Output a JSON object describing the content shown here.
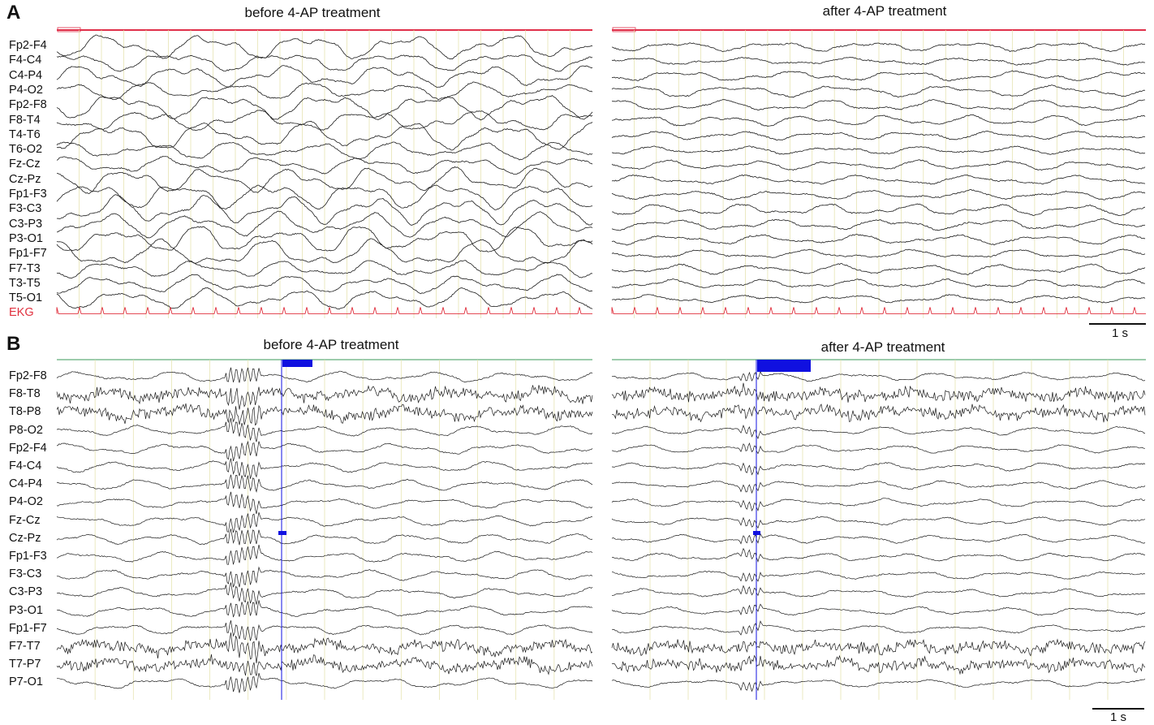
{
  "panels": {
    "A": {
      "letter": "A",
      "left_title": "before 4-AP treatment",
      "right_title": "after 4-AP treatment",
      "channels": [
        "Fp2-F4",
        "F4-C4",
        "C4-P4",
        "P4-O2",
        "Fp2-F8",
        "F8-T4",
        "T4-T6",
        "T6-O2",
        "Fz-Cz",
        "Cz-Pz",
        "Fp1-F3",
        "F3-C3",
        "C3-P3",
        "P3-O1",
        "Fp1-F7",
        "F7-T3",
        "T3-T5",
        "T5-O1",
        "EKG"
      ],
      "ekg_color": "#e0303e",
      "scale_label": "1 s"
    },
    "B": {
      "letter": "B",
      "left_title": "before 4-AP treatment",
      "right_title": "after 4-AP treatment",
      "channels": [
        "Fp2-F8",
        "F8-T8",
        "T8-P8",
        "P8-O2",
        "Fp2-F4",
        "F4-C4",
        "C4-P4",
        "P4-O2",
        "Fz-Cz",
        "Cz-Pz",
        "Fp1-F3",
        "F3-C3",
        "C3-P3",
        "P3-O1",
        "Fp1-F7",
        "F7-T7",
        "T7-P7",
        "P7-O1"
      ],
      "marker_color": "#1010e0",
      "scale_label": "1 s"
    }
  },
  "colors": {
    "trace": "#1a1a1a",
    "grid": "#e3e0a8",
    "header_line_A": "#e0304a",
    "header_line_B": "#3a9a5a"
  }
}
